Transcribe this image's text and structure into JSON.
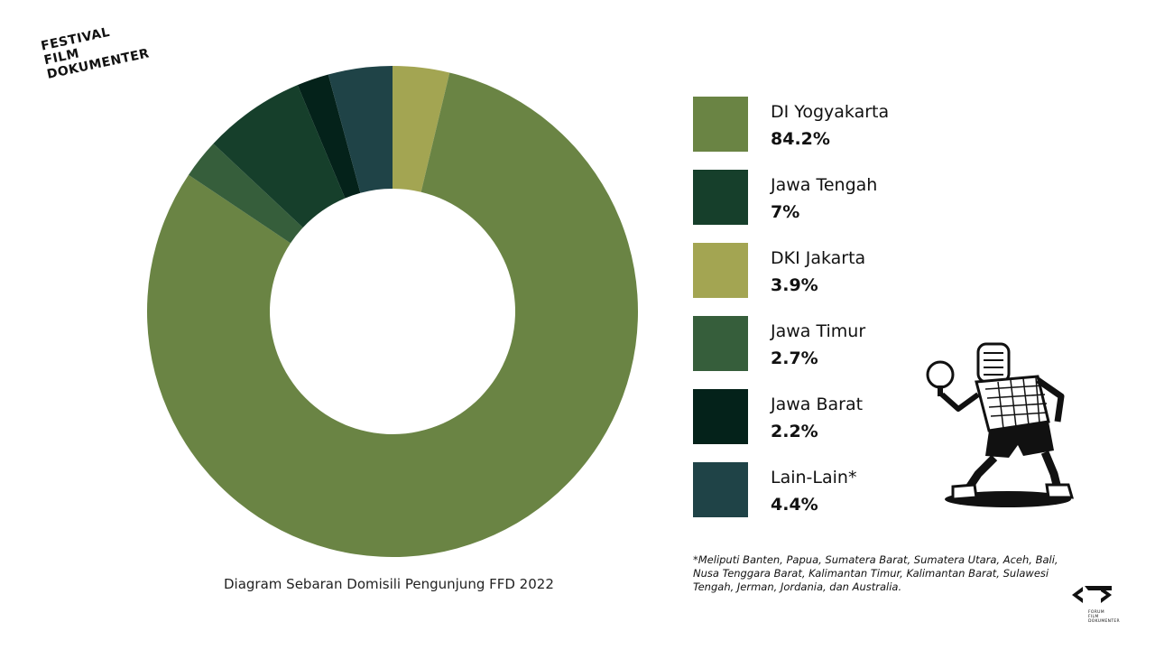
{
  "brand": {
    "logo_lines": [
      "FESTIVAL",
      "FILM",
      "DOKUMENTER"
    ],
    "forum_logo_lines": [
      "FORUM",
      "FILM",
      "DOKUMENTER"
    ]
  },
  "chart_data": {
    "type": "pie",
    "donut": true,
    "title": "Diagram Sebaran Domisili Pengunjung FFD 2022",
    "start": "12 o'clock, clockwise",
    "slice_order": [
      "DKI Jakarta",
      "DI Yogyakarta",
      "Jawa Timur",
      "Jawa Tengah",
      "Jawa Barat",
      "Lain-Lain*"
    ],
    "categories": [
      "DI Yogyakarta",
      "Jawa Tengah",
      "DKI Jakarta",
      "Jawa Timur",
      "Jawa Barat",
      "Lain-Lain*"
    ],
    "values": [
      84.2,
      7,
      3.9,
      2.7,
      2.2,
      4.4
    ],
    "value_labels": [
      "84.2%",
      "7%",
      "3.9%",
      "2.7%",
      "2.2%",
      "4.4%"
    ],
    "colors": {
      "DI Yogyakarta": "#6a8444",
      "Jawa Tengah": "#163f2b",
      "DKI Jakarta": "#a3a552",
      "Jawa Timur": "#365e3b",
      "Jawa Barat": "#04221a",
      "Lain-Lain*": "#1f4347"
    },
    "legend_position": "right"
  },
  "footnote": "*Meliputi Banten, Papua, Sumatera Barat, Sumatera Utara, Aceh, Bali, Nusa Tenggara Barat, Kalimantan Timur, Kalimantan Barat, Sulawesi Tengah, Jerman, Jordania, dan Australia."
}
